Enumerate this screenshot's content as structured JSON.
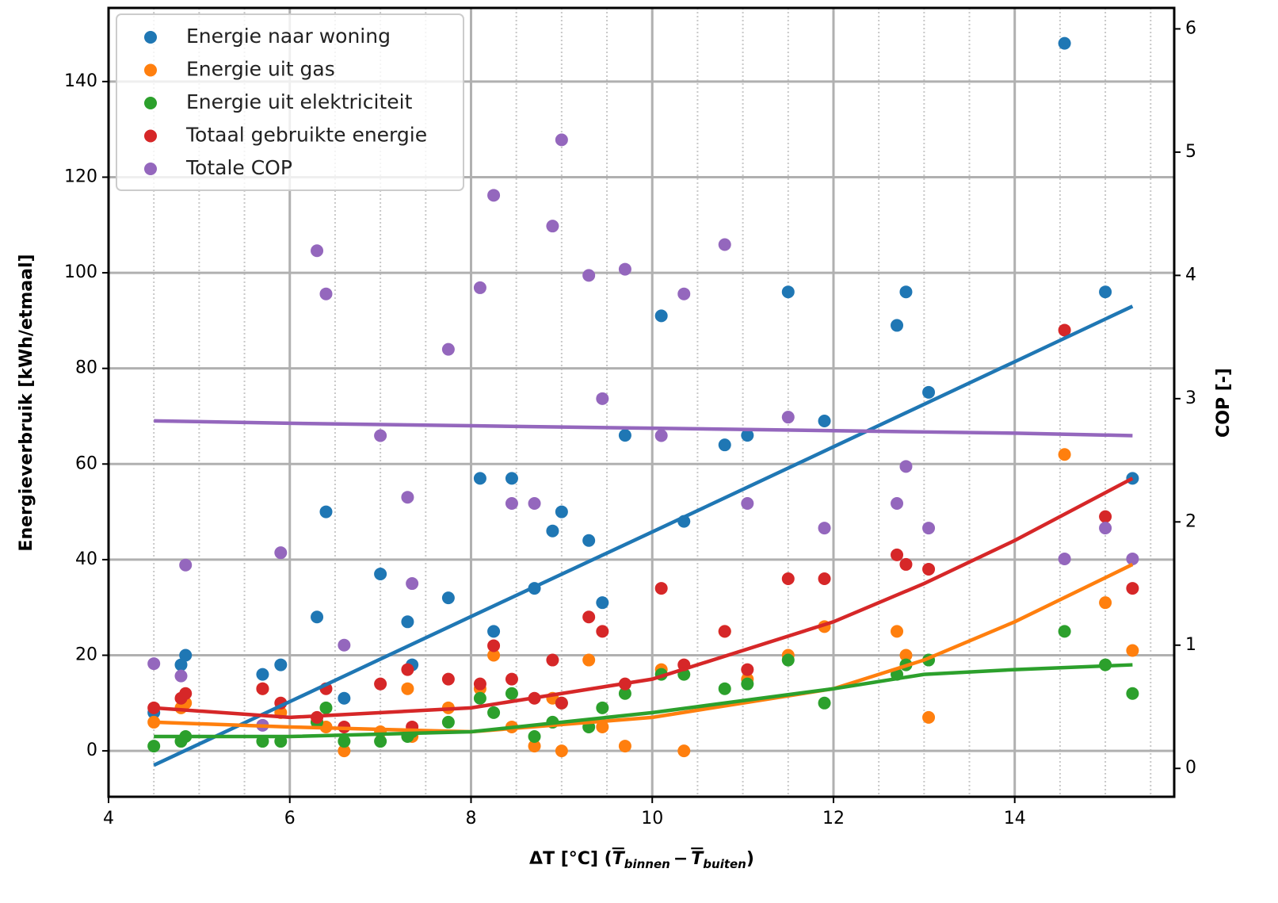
{
  "chart_data": {
    "type": "scatter",
    "xlabel": [
      "ΔT [°C] (",
      "T",
      "binnen",
      "−",
      "T",
      "buiten",
      ")"
    ],
    "ylabel": "Energieverbruik [kWh/etmaal]",
    "y2label": "COP [-]",
    "xlim": [
      4,
      15.76
    ],
    "ylim": [
      -9.6,
      155.4
    ],
    "y2lim": [
      -0.23,
      6.17
    ],
    "xticks": [
      4,
      6,
      8,
      10,
      12,
      14
    ],
    "yticks": [
      0,
      20,
      40,
      60,
      80,
      100,
      120,
      140
    ],
    "y2ticks": [
      0,
      1,
      2,
      3,
      4,
      5,
      6
    ],
    "xminorticks": [
      4.5,
      5,
      5.5,
      6.5,
      7,
      7.5,
      8.5,
      9,
      9.5,
      10.5,
      11,
      11.5,
      12.5,
      13,
      13.5,
      14.5,
      15,
      15.5
    ],
    "grid": true,
    "legend": "upper left",
    "x": [
      4.5,
      4.8,
      4.85,
      5.7,
      5.9,
      6.3,
      6.4,
      6.6,
      7.0,
      7.3,
      7.35,
      7.75,
      8.1,
      8.25,
      8.45,
      8.7,
      8.9,
      9.0,
      9.3,
      9.45,
      9.7,
      10.1,
      10.35,
      10.8,
      11.05,
      11.5,
      11.9,
      12.7,
      12.8,
      13.05,
      14.55,
      15.0,
      15.3
    ],
    "series": [
      {
        "name": "Energie naar woning",
        "color": "#1f77b4",
        "values": [
          8,
          18,
          20,
          16,
          18,
          28,
          50,
          11,
          37,
          27,
          18,
          32,
          57,
          25,
          57,
          34,
          46,
          50,
          44,
          31,
          66,
          91,
          48,
          64,
          66,
          96,
          69,
          89,
          96,
          75,
          148,
          96,
          57
        ]
      },
      {
        "name": "Energie uit gas",
        "color": "#ff7f0e",
        "values": [
          6,
          9,
          10,
          13,
          8,
          6,
          5,
          0,
          4,
          13,
          3,
          9,
          13,
          20,
          5,
          1,
          11,
          0,
          19,
          5,
          1,
          17,
          0,
          25,
          15,
          20,
          26,
          25,
          20,
          7,
          62,
          31,
          21
        ]
      },
      {
        "name": "Energie uit elektriciteit",
        "color": "#2ca02c",
        "values": [
          1,
          2,
          3,
          2,
          2,
          6,
          9,
          2,
          2,
          3,
          4,
          6,
          11,
          8,
          12,
          3,
          6,
          10,
          5,
          9,
          12,
          16,
          16,
          13,
          14,
          19,
          10,
          16,
          18,
          19,
          25,
          18,
          12
        ]
      },
      {
        "name": "Totaal gebruikte energie",
        "color": "#d62728",
        "values": [
          9,
          11,
          12,
          13,
          10,
          7,
          13,
          5,
          14,
          17,
          5,
          15,
          14,
          22,
          15,
          11,
          19,
          10,
          28,
          25,
          14,
          34,
          18,
          25,
          17,
          36,
          36,
          41,
          39,
          38,
          88,
          49,
          34
        ]
      },
      {
        "name": "Totale COP",
        "color": "#9467bd",
        "axis": "y2",
        "values": [
          0.85,
          0.75,
          1.65,
          0.35,
          1.75,
          4.2,
          3.85,
          1.0,
          2.7,
          2.2,
          1.5,
          3.4,
          3.9,
          4.65,
          2.15,
          2.15,
          4.4,
          5.1,
          4.0,
          3.0,
          4.05,
          2.7,
          3.85,
          4.25,
          2.15,
          2.85,
          1.95,
          2.15,
          2.45,
          1.95,
          1.7,
          1.95,
          1.7
        ]
      }
    ],
    "fit_x": [
      4.5,
      6,
      8,
      10,
      12,
      13,
      14,
      15.3
    ],
    "fits": [
      {
        "color": "#1f77b4",
        "values": [
          -3,
          10.3,
          28.1,
          45.8,
          63.6,
          72.5,
          81.4,
          93
        ]
      },
      {
        "color": "#ff7f0e",
        "values": [
          6,
          5,
          4,
          7,
          13,
          19,
          27,
          39
        ]
      },
      {
        "color": "#2ca02c",
        "values": [
          3,
          3,
          4,
          8,
          13,
          16,
          17,
          18
        ]
      },
      {
        "color": "#d62728",
        "values": [
          9,
          7,
          9,
          15,
          27,
          35,
          44,
          57
        ]
      },
      {
        "color": "#9467bd",
        "axis": "y2",
        "values": [
          2.82,
          2.8,
          2.78,
          2.76,
          2.74,
          2.73,
          2.72,
          2.7
        ]
      }
    ]
  }
}
